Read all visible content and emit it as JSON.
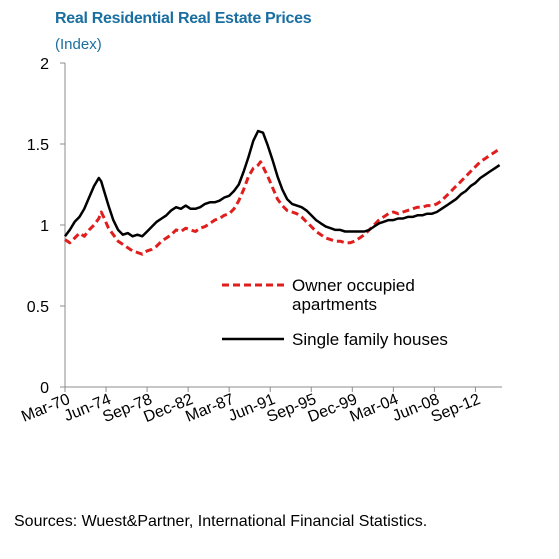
{
  "colors": {
    "title": "#1a6fa0",
    "owner_occupied": "#e01e1e",
    "single_family": "#000000",
    "axis": "#8c8c8c"
  },
  "chart_data": {
    "type": "line",
    "title": "Real Residential Real Estate Prices",
    "subtitle": "(Index)",
    "ylim": [
      0,
      2
    ],
    "yticks": [
      {
        "value": 0,
        "label": "0"
      },
      {
        "value": 0.5,
        "label": "0.5"
      },
      {
        "value": 1,
        "label": "1"
      },
      {
        "value": 1.5,
        "label": "1.5"
      },
      {
        "value": 2,
        "label": "2"
      }
    ],
    "xlim": [
      1970.0,
      2015.25
    ],
    "xticks": [
      {
        "value": 1970.0,
        "label": "Mar-70"
      },
      {
        "value": 1974.25,
        "label": "Jun-74"
      },
      {
        "value": 1978.5,
        "label": "Sep-78"
      },
      {
        "value": 1982.75,
        "label": "Dec-82"
      },
      {
        "value": 1987.0,
        "label": "Mar-87"
      },
      {
        "value": 1991.25,
        "label": "Jun-91"
      },
      {
        "value": 1995.5,
        "label": "Sep-95"
      },
      {
        "value": 1999.75,
        "label": "Dec-99"
      },
      {
        "value": 2004.0,
        "label": "Mar-04"
      },
      {
        "value": 2008.25,
        "label": "Jun-08"
      },
      {
        "value": 2012.5,
        "label": "Sep-12"
      }
    ],
    "grid": false,
    "legend_position": "center-right",
    "series": [
      {
        "name": "Owner occupied apartments",
        "legend_lines": [
          "Owner occupied",
          "apartments"
        ],
        "style": "dashed",
        "points": [
          [
            1970.0,
            0.91
          ],
          [
            1970.5,
            0.89
          ],
          [
            1971.0,
            0.92
          ],
          [
            1971.5,
            0.95
          ],
          [
            1972.0,
            0.93
          ],
          [
            1972.5,
            0.97
          ],
          [
            1973.0,
            1.0
          ],
          [
            1973.5,
            1.04
          ],
          [
            1973.75,
            1.08
          ],
          [
            1974.0,
            1.05
          ],
          [
            1974.5,
            0.98
          ],
          [
            1975.0,
            0.94
          ],
          [
            1975.5,
            0.9
          ],
          [
            1976.0,
            0.88
          ],
          [
            1976.5,
            0.86
          ],
          [
            1977.0,
            0.84
          ],
          [
            1977.5,
            0.83
          ],
          [
            1978.0,
            0.82
          ],
          [
            1978.5,
            0.84
          ],
          [
            1979.0,
            0.85
          ],
          [
            1979.5,
            0.87
          ],
          [
            1980.0,
            0.9
          ],
          [
            1980.5,
            0.92
          ],
          [
            1981.0,
            0.94
          ],
          [
            1981.5,
            0.97
          ],
          [
            1982.0,
            0.96
          ],
          [
            1982.5,
            0.98
          ],
          [
            1983.0,
            0.97
          ],
          [
            1983.5,
            0.96
          ],
          [
            1984.0,
            0.98
          ],
          [
            1984.5,
            0.99
          ],
          [
            1985.0,
            1.01
          ],
          [
            1985.5,
            1.03
          ],
          [
            1986.0,
            1.04
          ],
          [
            1986.5,
            1.06
          ],
          [
            1987.0,
            1.07
          ],
          [
            1987.5,
            1.1
          ],
          [
            1988.0,
            1.15
          ],
          [
            1988.5,
            1.22
          ],
          [
            1989.0,
            1.3
          ],
          [
            1989.5,
            1.35
          ],
          [
            1990.0,
            1.37
          ],
          [
            1990.25,
            1.39
          ],
          [
            1990.5,
            1.36
          ],
          [
            1991.0,
            1.3
          ],
          [
            1991.5,
            1.23
          ],
          [
            1992.0,
            1.16
          ],
          [
            1992.5,
            1.12
          ],
          [
            1993.0,
            1.09
          ],
          [
            1993.5,
            1.08
          ],
          [
            1994.0,
            1.07
          ],
          [
            1994.5,
            1.05
          ],
          [
            1995.0,
            1.02
          ],
          [
            1995.5,
            0.99
          ],
          [
            1996.0,
            0.96
          ],
          [
            1996.5,
            0.94
          ],
          [
            1997.0,
            0.92
          ],
          [
            1997.5,
            0.91
          ],
          [
            1998.0,
            0.9
          ],
          [
            1998.5,
            0.9
          ],
          [
            1999.0,
            0.89
          ],
          [
            1999.5,
            0.89
          ],
          [
            2000.0,
            0.9
          ],
          [
            2000.5,
            0.92
          ],
          [
            2001.0,
            0.94
          ],
          [
            2001.5,
            0.97
          ],
          [
            2002.0,
            1.0
          ],
          [
            2002.5,
            1.03
          ],
          [
            2003.0,
            1.05
          ],
          [
            2003.5,
            1.07
          ],
          [
            2004.0,
            1.08
          ],
          [
            2004.5,
            1.07
          ],
          [
            2005.0,
            1.08
          ],
          [
            2005.5,
            1.09
          ],
          [
            2006.0,
            1.1
          ],
          [
            2006.5,
            1.11
          ],
          [
            2007.0,
            1.11
          ],
          [
            2007.5,
            1.12
          ],
          [
            2008.0,
            1.12
          ],
          [
            2008.5,
            1.13
          ],
          [
            2009.0,
            1.15
          ],
          [
            2009.5,
            1.18
          ],
          [
            2010.0,
            1.21
          ],
          [
            2010.5,
            1.24
          ],
          [
            2011.0,
            1.27
          ],
          [
            2011.5,
            1.3
          ],
          [
            2012.0,
            1.33
          ],
          [
            2012.5,
            1.36
          ],
          [
            2013.0,
            1.39
          ],
          [
            2013.5,
            1.41
          ],
          [
            2014.0,
            1.43
          ],
          [
            2014.5,
            1.45
          ],
          [
            2015.0,
            1.47
          ]
        ]
      },
      {
        "name": "Single family houses",
        "legend_lines": [
          "Single family houses"
        ],
        "style": "solid",
        "points": [
          [
            1970.0,
            0.93
          ],
          [
            1970.5,
            0.97
          ],
          [
            1971.0,
            1.02
          ],
          [
            1971.5,
            1.05
          ],
          [
            1972.0,
            1.1
          ],
          [
            1972.5,
            1.17
          ],
          [
            1973.0,
            1.24
          ],
          [
            1973.5,
            1.29
          ],
          [
            1973.75,
            1.27
          ],
          [
            1974.0,
            1.22
          ],
          [
            1974.5,
            1.12
          ],
          [
            1975.0,
            1.03
          ],
          [
            1975.5,
            0.97
          ],
          [
            1976.0,
            0.94
          ],
          [
            1976.5,
            0.95
          ],
          [
            1977.0,
            0.93
          ],
          [
            1977.5,
            0.94
          ],
          [
            1978.0,
            0.93
          ],
          [
            1978.5,
            0.96
          ],
          [
            1979.0,
            0.99
          ],
          [
            1979.5,
            1.02
          ],
          [
            1980.0,
            1.04
          ],
          [
            1980.5,
            1.06
          ],
          [
            1981.0,
            1.09
          ],
          [
            1981.5,
            1.11
          ],
          [
            1982.0,
            1.1
          ],
          [
            1982.5,
            1.12
          ],
          [
            1983.0,
            1.1
          ],
          [
            1983.5,
            1.1
          ],
          [
            1984.0,
            1.11
          ],
          [
            1984.5,
            1.13
          ],
          [
            1985.0,
            1.14
          ],
          [
            1985.5,
            1.14
          ],
          [
            1986.0,
            1.15
          ],
          [
            1986.5,
            1.17
          ],
          [
            1987.0,
            1.18
          ],
          [
            1987.5,
            1.21
          ],
          [
            1988.0,
            1.25
          ],
          [
            1988.5,
            1.33
          ],
          [
            1989.0,
            1.42
          ],
          [
            1989.5,
            1.52
          ],
          [
            1990.0,
            1.58
          ],
          [
            1990.5,
            1.57
          ],
          [
            1991.0,
            1.49
          ],
          [
            1991.5,
            1.4
          ],
          [
            1992.0,
            1.3
          ],
          [
            1992.5,
            1.22
          ],
          [
            1993.0,
            1.16
          ],
          [
            1993.5,
            1.13
          ],
          [
            1994.0,
            1.12
          ],
          [
            1994.5,
            1.11
          ],
          [
            1995.0,
            1.09
          ],
          [
            1995.5,
            1.06
          ],
          [
            1996.0,
            1.03
          ],
          [
            1996.5,
            1.01
          ],
          [
            1997.0,
            0.99
          ],
          [
            1997.5,
            0.98
          ],
          [
            1998.0,
            0.97
          ],
          [
            1998.5,
            0.97
          ],
          [
            1999.0,
            0.96
          ],
          [
            1999.5,
            0.96
          ],
          [
            2000.0,
            0.96
          ],
          [
            2000.5,
            0.96
          ],
          [
            2001.0,
            0.96
          ],
          [
            2001.5,
            0.97
          ],
          [
            2002.0,
            0.99
          ],
          [
            2002.5,
            1.01
          ],
          [
            2003.0,
            1.02
          ],
          [
            2003.5,
            1.03
          ],
          [
            2004.0,
            1.03
          ],
          [
            2004.5,
            1.04
          ],
          [
            2005.0,
            1.04
          ],
          [
            2005.5,
            1.05
          ],
          [
            2006.0,
            1.05
          ],
          [
            2006.5,
            1.06
          ],
          [
            2007.0,
            1.06
          ],
          [
            2007.5,
            1.07
          ],
          [
            2008.0,
            1.07
          ],
          [
            2008.5,
            1.08
          ],
          [
            2009.0,
            1.1
          ],
          [
            2009.5,
            1.12
          ],
          [
            2010.0,
            1.14
          ],
          [
            2010.5,
            1.16
          ],
          [
            2011.0,
            1.19
          ],
          [
            2011.5,
            1.21
          ],
          [
            2012.0,
            1.24
          ],
          [
            2012.5,
            1.26
          ],
          [
            2013.0,
            1.29
          ],
          [
            2013.5,
            1.31
          ],
          [
            2014.0,
            1.33
          ],
          [
            2014.5,
            1.35
          ],
          [
            2015.0,
            1.37
          ]
        ]
      }
    ]
  },
  "source": "Sources: Wuest&Partner, International Financial Statistics."
}
